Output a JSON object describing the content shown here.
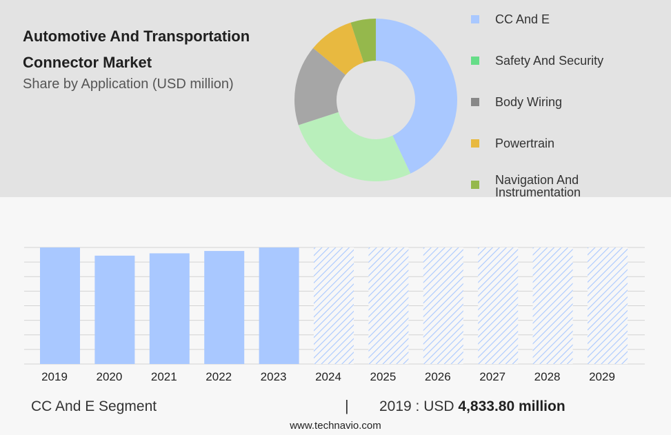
{
  "header": {
    "title": "Automotive And Transportation Connector Market",
    "subtitle": "Share by Application (USD million)"
  },
  "chart_data": [
    {
      "type": "pie",
      "style": "donut",
      "slices": [
        {
          "label": "CC And E",
          "value": 43,
          "color": "#a9c8ff"
        },
        {
          "label": "Safety And Security",
          "value": 27,
          "color": "#b9efbb"
        },
        {
          "label": "Body Wiring",
          "value": 16,
          "color": "#a6a6a6"
        },
        {
          "label": "Powertrain",
          "value": 9,
          "color": "#e8b940"
        },
        {
          "label": "Navigation And Instrumentation",
          "value": 5,
          "color": "#95b84c"
        }
      ],
      "legend": {
        "placement": "right",
        "items": [
          {
            "label": "CC And E",
            "color": "#a9c8ff"
          },
          {
            "label": "Safety And Security",
            "color": "#66dd88"
          },
          {
            "label": "Body Wiring",
            "color": "#888888"
          },
          {
            "label": "Powertrain",
            "color": "#e8b940"
          },
          {
            "label": "Navigation And Instrumentation",
            "color": "#95b84c"
          }
        ]
      }
    },
    {
      "type": "bar",
      "categories": [
        "2019",
        "2020",
        "2021",
        "2022",
        "2023",
        "2024",
        "2025",
        "2026",
        "2027",
        "2028",
        "2029"
      ],
      "values": [
        100,
        93,
        95,
        97,
        100,
        100,
        100,
        100,
        100,
        100,
        100
      ],
      "forecast_from": "2024",
      "ylim": [
        0,
        100
      ],
      "grid": true,
      "color": "#a9c8ff"
    }
  ],
  "footer": {
    "segment": "CC And E Segment",
    "divider": "|",
    "value_prefix": "2019 : USD",
    "value_bold": "4,833.80 million",
    "source": "www.technavio.com"
  }
}
